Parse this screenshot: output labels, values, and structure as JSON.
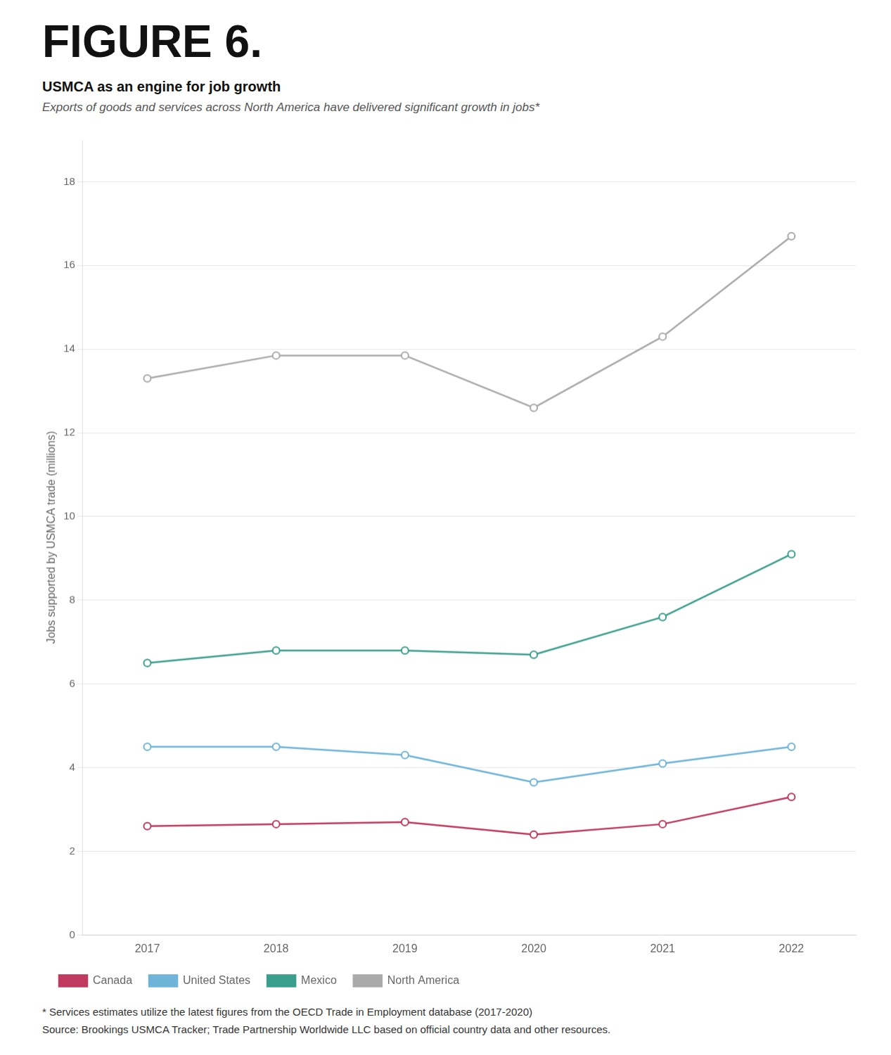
{
  "chart_data": {
    "type": "line",
    "title": "FIGURE 6.",
    "subtitle": [
      "USMCA as an engine for job growth",
      "Exports of goods and services across North America have delivered significant growth in jobs*"
    ],
    "annotations": [
      "* Services estimates utilize the latest figures from the OECD Trade in Employment database (2017-2020)",
      "Source: Brookings USMCA Tracker; Trade Partnership Worldwide LLC based on official country data and other resources."
    ],
    "y_label": "Jobs supported by USMCA trade (millions)",
    "x": [
      2017,
      2018,
      2019,
      2020,
      2021,
      2022
    ],
    "xlim": [
      2016.5,
      2022.5
    ],
    "xticks": [
      2017,
      2018,
      2019,
      2020,
      2021,
      2022
    ],
    "ylim": [
      0,
      19
    ],
    "yticks": [
      0,
      2,
      4,
      6,
      8,
      10,
      12,
      14,
      16,
      18
    ],
    "grid": true,
    "legend": "bottom",
    "marker": "o",
    "series": [
      {
        "name": "Canada",
        "color": "#c0395e",
        "values": [
          2.6,
          2.65,
          2.7,
          2.4,
          2.65,
          3.3
        ]
      },
      {
        "name": "United States",
        "color": "#6eb4d8",
        "values": [
          4.5,
          4.5,
          4.3,
          3.65,
          4.1,
          4.5
        ]
      },
      {
        "name": "Mexico",
        "color": "#3a9e8c",
        "values": [
          6.5,
          6.8,
          6.8,
          6.7,
          7.6,
          9.1
        ]
      },
      {
        "name": "North America",
        "color": "#aaaaaa",
        "values": [
          13.3,
          13.85,
          13.85,
          12.6,
          14.3,
          16.7
        ]
      }
    ]
  }
}
